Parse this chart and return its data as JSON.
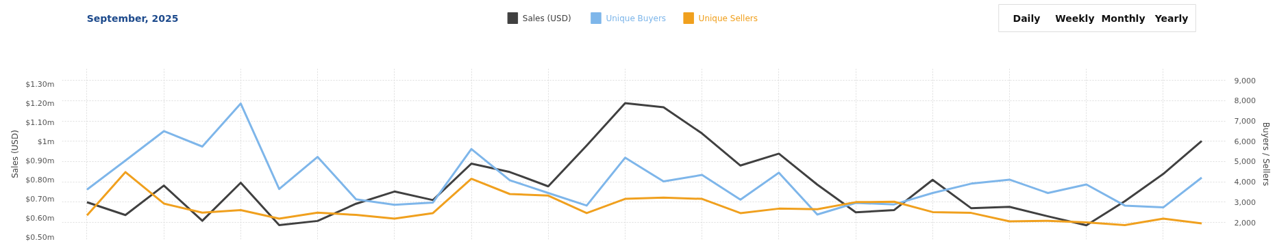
{
  "chart_data": {
    "type": "line",
    "title": "September, 2025",
    "annotations": [
      "Daily",
      "Weekly",
      "Monthly",
      "Yearly"
    ],
    "ylabel": "Sales (USD)",
    "y2label": "Buyers / Sellers",
    "categories": [
      null,
      null,
      null,
      null,
      null,
      null,
      null,
      null,
      null,
      null,
      null,
      null,
      null,
      null,
      null,
      null,
      null,
      null,
      null,
      null,
      null,
      null,
      null,
      null,
      null,
      null,
      null,
      null,
      null,
      null
    ],
    "series": [
      {
        "name": "Sales (USD)",
        "color": "#404040",
        "values": [
          0.685,
          0.618,
          0.772,
          0.588,
          0.787,
          0.565,
          0.587,
          0.677,
          0.741,
          0.696,
          0.887,
          0.843,
          0.768,
          0.982,
          1.203,
          1.182,
          1.045,
          0.877,
          0.939,
          0.777,
          0.632,
          0.644,
          0.802,
          0.654,
          0.661,
          0.611,
          0.564,
          0.69,
          0.833,
          1.005
        ]
      },
      {
        "name": "Unique Buyers",
        "color": "#7eb6ea",
        "axis": "y2",
        "values": [
          3620,
          5050,
          6500,
          5740,
          7860,
          3650,
          5230,
          3140,
          2870,
          2980,
          5620,
          4080,
          3450,
          2830,
          5190,
          4020,
          4340,
          3120,
          4450,
          2390,
          2960,
          2890,
          3450,
          3910,
          4110,
          3450,
          3870,
          2830,
          2740,
          4210
        ]
      },
      {
        "name": "Unique Sellers",
        "color": "#f0a01e",
        "axis": "y2",
        "values": [
          2350,
          4480,
          2930,
          2480,
          2610,
          2190,
          2480,
          2370,
          2190,
          2460,
          4150,
          3400,
          3320,
          2460,
          3160,
          3220,
          3160,
          2460,
          2680,
          2650,
          3000,
          3020,
          2510,
          2470,
          2050,
          2080,
          2000,
          1870,
          2190,
          1950
        ]
      }
    ],
    "ylim": [
      0.49,
      1.384
    ],
    "yticks": [
      {
        "value": 0.5,
        "label": "$0.50m"
      },
      {
        "value": 0.6,
        "label": "$0.60m"
      },
      {
        "value": 0.7,
        "label": "$0.70m"
      },
      {
        "value": 0.8,
        "label": "$0.80m"
      },
      {
        "value": 0.9,
        "label": "$0.90m"
      },
      {
        "value": 1.0,
        "label": "$1m"
      },
      {
        "value": 1.1,
        "label": "$1.10m"
      },
      {
        "value": 1.2,
        "label": "$1.20m"
      },
      {
        "value": 1.3,
        "label": "$1.30m"
      }
    ],
    "y2lim": [
      1160,
      9580
    ],
    "y2ticks": [
      {
        "value": 2000,
        "label": "2,000"
      },
      {
        "value": 3000,
        "label": "3,000"
      },
      {
        "value": 4000,
        "label": "4,000"
      },
      {
        "value": 5000,
        "label": "5,000"
      },
      {
        "value": 6000,
        "label": "6,000"
      },
      {
        "value": 7000,
        "label": "7,000"
      },
      {
        "value": 8000,
        "label": "8,000"
      },
      {
        "value": 9000,
        "label": "9,000"
      }
    ],
    "grid": true,
    "legend": "top",
    "marker": "none",
    "line_style": "solid"
  }
}
